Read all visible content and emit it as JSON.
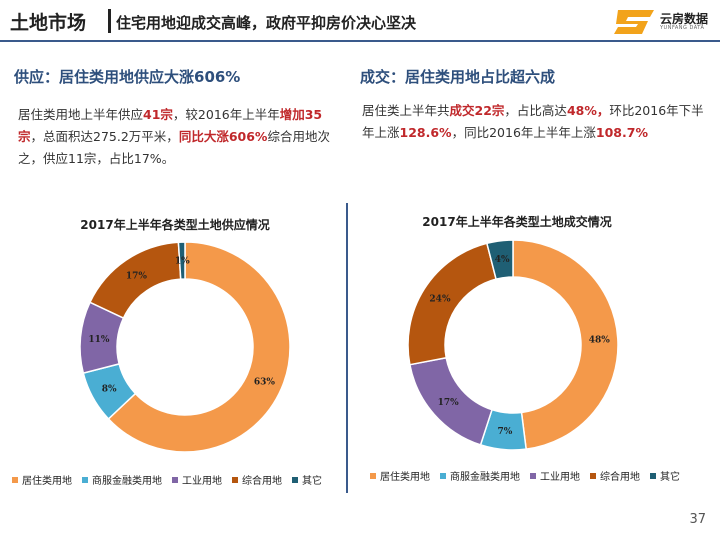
{
  "header": {
    "title_main": "土地市场",
    "title_sub": "住宅用地迎成交高峰，政府平抑房价决心坚决",
    "logo_text": "云房数据",
    "logo_sub": "YUNFANG DATA"
  },
  "left": {
    "section_title": "供应：居住类用地供应大涨606%",
    "text": [
      "居住类用地上半年供应",
      "41宗",
      "，较2016年上半年",
      "增加35宗",
      "，总面积达275.2万平米，",
      "同比大涨606%",
      "综合用地次之，供应11宗，占比17%。"
    ]
  },
  "right": {
    "section_title": "成交：居住类用地占比超六成",
    "text": [
      "居住类上半年共",
      "成交22宗",
      "，占比高达",
      "48%，",
      "环比2016年下半年上涨",
      "128.6%",
      "，同比2016年上半年上涨",
      "108.7%"
    ]
  },
  "colors": {
    "residential": "#f4994a",
    "commercial": "#4aaed3",
    "industrial": "#8066a6",
    "comprehensive": "#b5560f",
    "other": "#1f5f74"
  },
  "chart_data": [
    {
      "type": "pie",
      "title": "2017年上半年各类型土地供应情况",
      "categories": [
        "居住类用地",
        "商服金融类用地",
        "工业用地",
        "综合用地",
        "其它"
      ],
      "values": [
        63,
        8,
        11,
        17,
        1
      ],
      "labels": [
        "63%",
        "8%",
        "11%",
        "17%",
        "1%"
      ],
      "legend": "bottom"
    },
    {
      "type": "pie",
      "title": "2017年上半年各类型土地成交情况",
      "categories": [
        "居住类用地",
        "商服金融类用地",
        "工业用地",
        "综合用地",
        "其它"
      ],
      "values": [
        48,
        7,
        17,
        24,
        4
      ],
      "labels": [
        "48%",
        "7%",
        "17%",
        "24%",
        "4%"
      ],
      "legend": "bottom"
    }
  ],
  "page_number": "37"
}
